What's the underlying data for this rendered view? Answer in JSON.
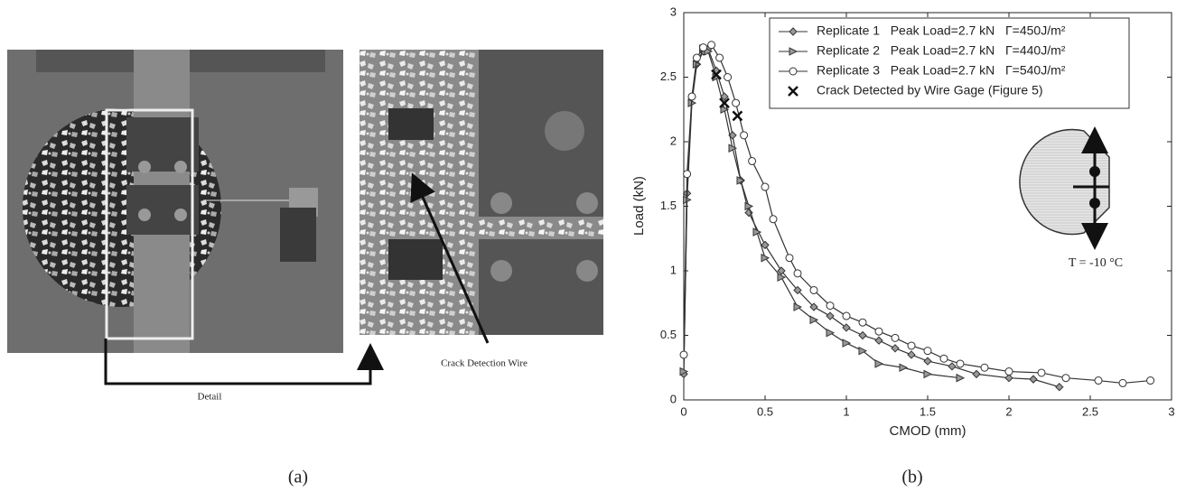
{
  "panel_a": {
    "label": "(a)",
    "detail_label": "Detail",
    "wire_label": "Crack Detection Wire"
  },
  "panel_b_label": "(b)",
  "chart_data": {
    "type": "line",
    "xlabel": "CMOD (mm)",
    "ylabel": "Load (kN)",
    "xlim": [
      0,
      3
    ],
    "ylim": [
      0,
      3
    ],
    "xticks": [
      0,
      0.5,
      1,
      1.5,
      2,
      2.5,
      3
    ],
    "yticks": [
      0,
      0.5,
      1,
      1.5,
      2,
      2.5,
      3
    ],
    "grid": false,
    "legend": "upper right",
    "annotation": "T = -10 °C",
    "series": [
      {
        "name": "Replicate 1   Peak Load=2.7 kN   Γ=450J/m²",
        "color": "#333333",
        "marker": "diamond",
        "x": [
          0,
          0.02,
          0.05,
          0.08,
          0.12,
          0.15,
          0.2,
          0.25,
          0.3,
          0.35,
          0.4,
          0.5,
          0.6,
          0.7,
          0.8,
          0.9,
          1.0,
          1.1,
          1.2,
          1.3,
          1.4,
          1.5,
          1.65,
          1.8,
          2.0,
          2.15,
          2.31
        ],
        "values": [
          0.2,
          1.6,
          2.35,
          2.6,
          2.7,
          2.72,
          2.55,
          2.35,
          2.05,
          1.7,
          1.45,
          1.2,
          1.0,
          0.85,
          0.72,
          0.65,
          0.56,
          0.5,
          0.46,
          0.4,
          0.35,
          0.3,
          0.26,
          0.2,
          0.17,
          0.16,
          0.1
        ]
      },
      {
        "name": "Replicate 2   Peak Load=2.7 kN   Γ=440J/m²",
        "color": "#333333",
        "marker": "triangle",
        "x": [
          0,
          0.02,
          0.05,
          0.08,
          0.12,
          0.15,
          0.2,
          0.25,
          0.3,
          0.35,
          0.4,
          0.45,
          0.5,
          0.6,
          0.7,
          0.8,
          0.9,
          1.0,
          1.1,
          1.2,
          1.35,
          1.5,
          1.7
        ],
        "values": [
          0.22,
          1.55,
          2.3,
          2.6,
          2.72,
          2.7,
          2.5,
          2.25,
          1.95,
          1.7,
          1.5,
          1.3,
          1.1,
          0.95,
          0.72,
          0.62,
          0.52,
          0.44,
          0.38,
          0.28,
          0.25,
          0.2,
          0.17
        ]
      },
      {
        "name": "Replicate 3   Peak Load=2.7 kN   Γ=540J/m²",
        "color": "#333333",
        "marker": "circle",
        "x": [
          0,
          0.02,
          0.05,
          0.08,
          0.12,
          0.17,
          0.22,
          0.27,
          0.32,
          0.37,
          0.42,
          0.5,
          0.55,
          0.65,
          0.7,
          0.8,
          0.9,
          1.0,
          1.1,
          1.2,
          1.3,
          1.4,
          1.5,
          1.6,
          1.7,
          1.85,
          2.0,
          2.2,
          2.35,
          2.55,
          2.7,
          2.87
        ],
        "values": [
          0.35,
          1.75,
          2.35,
          2.65,
          2.73,
          2.75,
          2.65,
          2.5,
          2.3,
          2.05,
          1.85,
          1.65,
          1.4,
          1.1,
          0.98,
          0.85,
          0.73,
          0.65,
          0.6,
          0.53,
          0.48,
          0.42,
          0.38,
          0.32,
          0.28,
          0.25,
          0.22,
          0.21,
          0.17,
          0.15,
          0.13,
          0.15
        ]
      },
      {
        "name": "Crack Detected by Wire Gage (Figure 5)",
        "color": "#111111",
        "marker": "x",
        "linestyle": "none",
        "x": [
          0.2,
          0.25,
          0.33
        ],
        "values": [
          2.52,
          2.3,
          2.2
        ]
      }
    ]
  }
}
